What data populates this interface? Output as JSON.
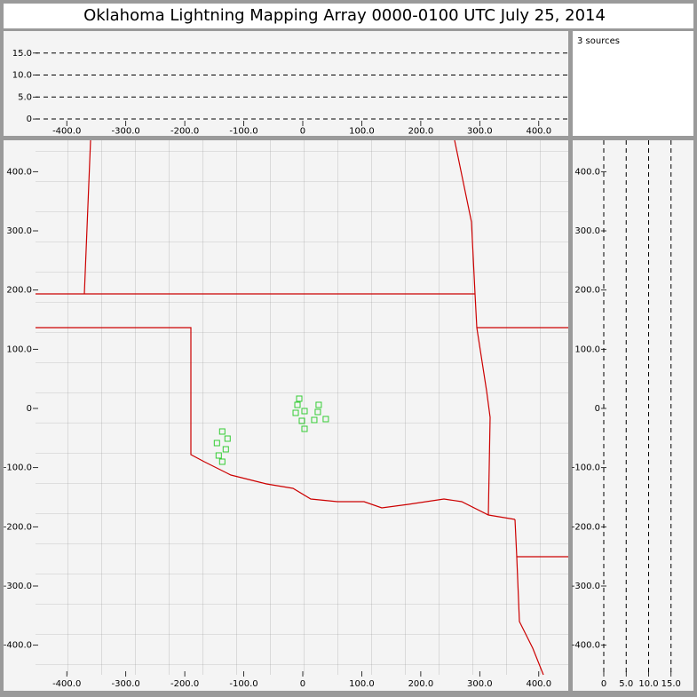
{
  "sources_label": "3 sources",
  "chart_data": [
    {
      "type": "altitude-x",
      "xlim": [
        -453,
        450
      ],
      "ylim": [
        -1.2,
        20
      ],
      "xticks": [
        {
          "value": -400,
          "label": "-400.0"
        },
        {
          "value": -300,
          "label": "-300.0"
        },
        {
          "value": -200,
          "label": "-200.0"
        },
        {
          "value": -100,
          "label": "-100.0"
        },
        0,
        {
          "value": 100,
          "label": "100.0"
        },
        {
          "value": 200,
          "label": "200.0"
        },
        {
          "value": 300,
          "label": "300.0"
        },
        {
          "value": 400,
          "label": "400.0"
        }
      ],
      "yticks": [
        0,
        {
          "value": 5,
          "label": "5.0"
        },
        {
          "value": 10,
          "label": "10.0"
        },
        {
          "value": 15,
          "label": "15.0"
        }
      ],
      "grid": true
    },
    {
      "type": "scatter",
      "title": "Oklahoma Lightning Mapping Array   0000-0100 UTC  July 25, 2014",
      "color": "#33cc33",
      "x": [
        -6,
        -9,
        3,
        -12,
        27,
        25.5,
        -1.5,
        19.5,
        39,
        3,
        -136.5,
        -127.5,
        -145.5,
        -130.5,
        -142.5,
        -136.5
      ],
      "values": [
        16.5,
        6,
        -4.5,
        -7.5,
        6,
        -6,
        -21,
        -19.5,
        -18,
        -34.5,
        -39,
        -51,
        -58.5,
        -69,
        -79.5,
        -90
      ],
      "xlim": [
        -453,
        450
      ],
      "ylim": [
        -450,
        453
      ],
      "xticks": [
        {
          "value": -400,
          "label": "-400.0"
        },
        {
          "value": -300,
          "label": "-300.0"
        },
        {
          "value": -200,
          "label": "-200.0"
        },
        {
          "value": -100,
          "label": "-100.0"
        },
        0,
        {
          "value": 100,
          "label": "100.0"
        },
        {
          "value": 200,
          "label": "200.0"
        },
        {
          "value": 300,
          "label": "300.0"
        },
        {
          "value": 400,
          "label": "400.0"
        }
      ],
      "yticks": [
        {
          "value": -400,
          "label": "-400.0"
        },
        {
          "value": -300,
          "label": "-300.0"
        },
        {
          "value": -200,
          "label": "-200.0"
        },
        {
          "value": -100,
          "label": "-100.0"
        },
        0,
        {
          "value": 100,
          "label": "100.0"
        },
        {
          "value": 200,
          "label": "200.0"
        },
        {
          "value": 300,
          "label": "300.0"
        },
        {
          "value": 400,
          "label": "400.0"
        }
      ],
      "grid": false
    },
    {
      "type": "altitude-y",
      "xlim": [
        0,
        20
      ],
      "ylim": [
        -450,
        453
      ],
      "xticks": [
        0,
        {
          "value": 5,
          "label": "5.0"
        },
        {
          "value": 10,
          "label": "10.0"
        },
        {
          "value": 15,
          "label": "15.0"
        }
      ],
      "yticks": [
        {
          "value": -400,
          "label": "-400.0"
        },
        {
          "value": -300,
          "label": "-300.0"
        },
        {
          "value": -200,
          "label": "-200.0"
        },
        {
          "value": -100,
          "label": "-100.0"
        },
        0,
        {
          "value": 100,
          "label": "100.0"
        },
        {
          "value": 200,
          "label": "200.0"
        },
        {
          "value": 300,
          "label": "300.0"
        },
        {
          "value": 400,
          "label": "400.0"
        }
      ],
      "grid": true
    }
  ]
}
